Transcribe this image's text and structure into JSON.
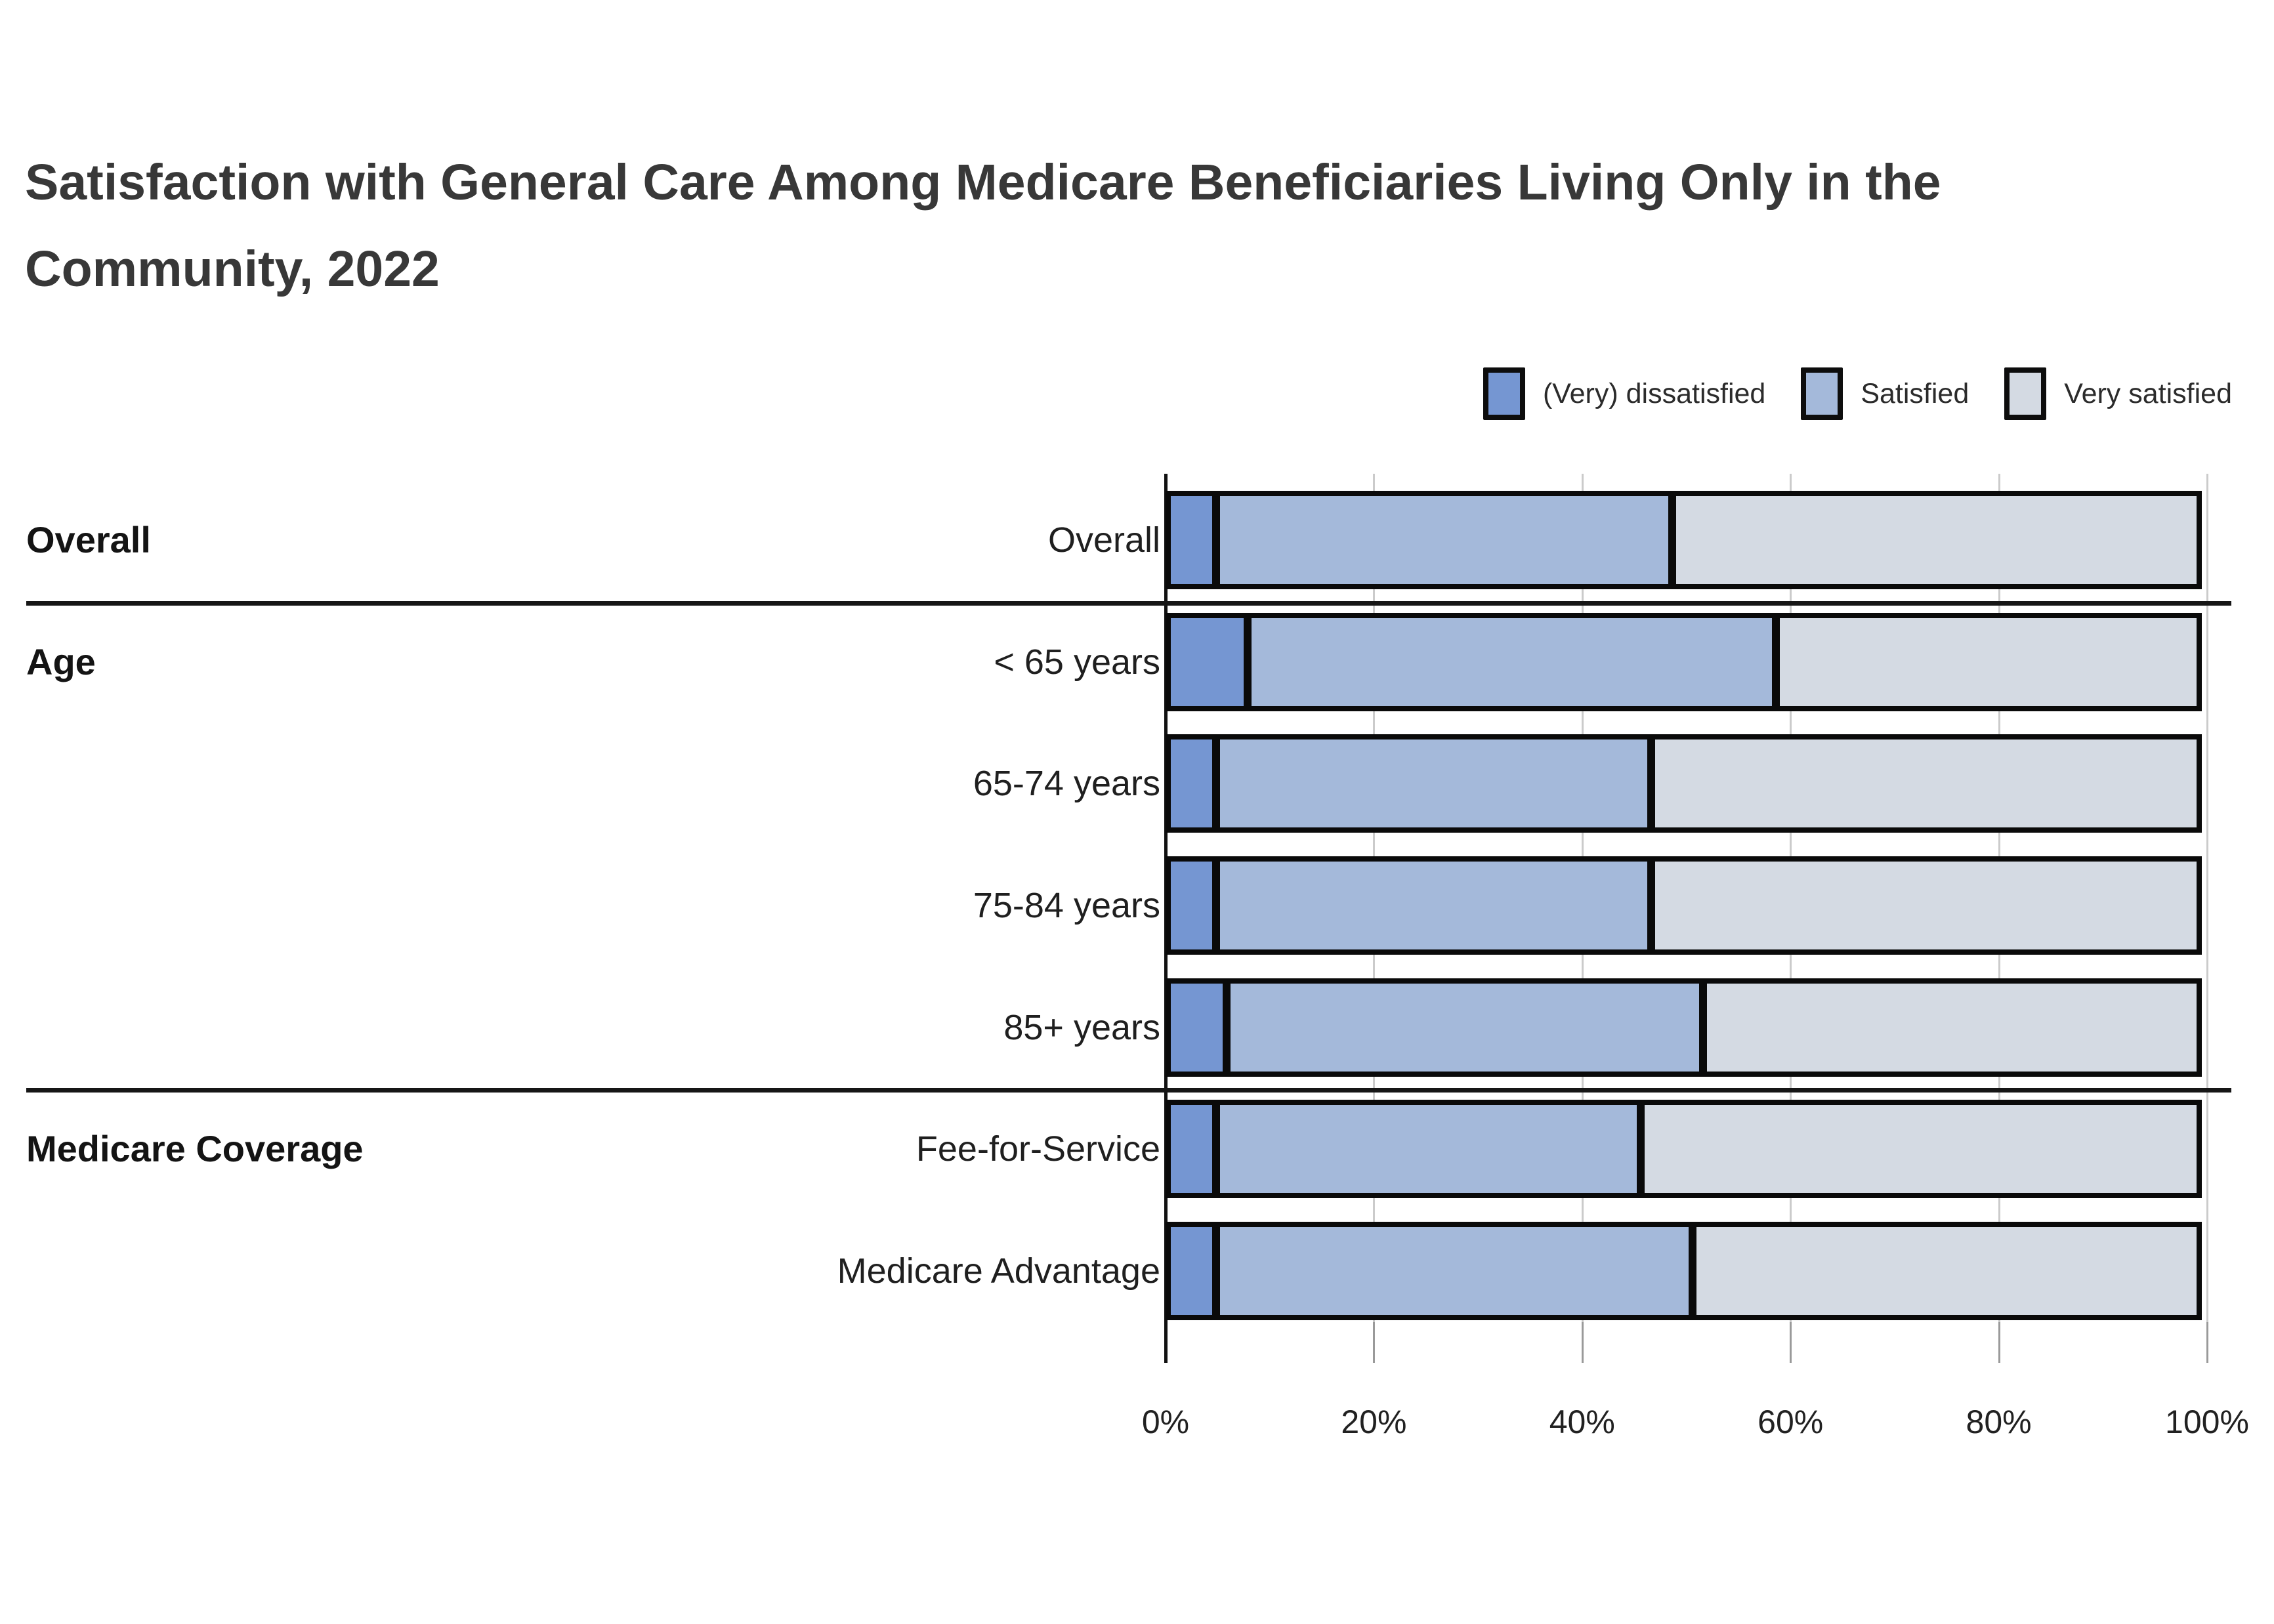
{
  "title": "Satisfaction with General Care Among Medicare Beneficiaries Living Only in the Community, 2022",
  "legend": {
    "items": [
      {
        "label": "(Very) dissatisfied",
        "color": "#7596d2"
      },
      {
        "label": "Satisfied",
        "color": "#a4b9da"
      },
      {
        "label": "Very satisfied",
        "color": "#d4dae3"
      }
    ]
  },
  "colors": {
    "dissatisfied": "#7596d2",
    "satisfied": "#a4b9da",
    "very_satisfied": "#d4dae3",
    "bar_border": "#0a0a0a",
    "gridline": "#cbcbcb",
    "axis": "#111111",
    "title_text": "#383838",
    "label_text": "#1f1f1f"
  },
  "chart_data": {
    "type": "bar",
    "orientation": "horizontal",
    "stacked": true,
    "title": "Satisfaction with General Care Among Medicare Beneficiaries Living Only in the Community, 2022",
    "xlabel": "",
    "ylabel": "",
    "xlim": [
      0,
      100
    ],
    "unit": "percent",
    "grid": true,
    "legend_position": "top-right",
    "x_ticks": [
      "0%",
      "20%",
      "40%",
      "60%",
      "80%",
      "100%"
    ],
    "series_names": [
      "(Very) dissatisfied",
      "Satisfied",
      "Very satisfied"
    ],
    "group_labels": [
      {
        "label": "Overall",
        "aligned_row": 0
      },
      {
        "label": "Age",
        "aligned_row": 1
      },
      {
        "label": "Medicare Coverage",
        "aligned_row": 5
      }
    ],
    "separators_before_rows": [
      1,
      5
    ],
    "rows": [
      {
        "label": "Overall",
        "group": "Overall",
        "values": [
          5,
          44,
          51
        ]
      },
      {
        "label": "< 65 years",
        "group": "Age",
        "values": [
          8,
          51,
          41
        ]
      },
      {
        "label": "65-74 years",
        "group": "Age",
        "values": [
          5,
          42,
          53
        ]
      },
      {
        "label": "75-84 years",
        "group": "Age",
        "values": [
          5,
          42,
          53
        ]
      },
      {
        "label": "85+ years",
        "group": "Age",
        "values": [
          6,
          46,
          48
        ]
      },
      {
        "label": "Fee-for-Service",
        "group": "Medicare Coverage",
        "values": [
          5,
          41,
          54
        ]
      },
      {
        "label": "Medicare Advantage",
        "group": "Medicare Coverage",
        "values": [
          5,
          46,
          49
        ]
      }
    ]
  }
}
